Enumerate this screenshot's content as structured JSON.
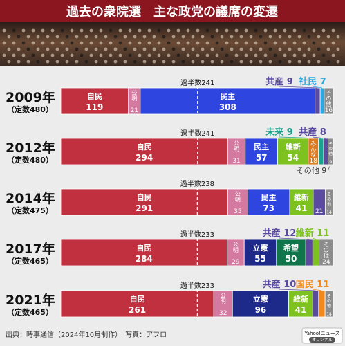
{
  "header": {
    "title": "過去の衆院選　主な政党の議席の変遷"
  },
  "photo": {
    "description": ""
  },
  "footer": {
    "source": "出典：時事通信（2024年10月制作）　写真：アフロ",
    "logo_line1": "Yahoo!ニュース",
    "logo_line2": "オリジナル"
  },
  "colors": {
    "自民": "#c1303e",
    "公明": "#d47aa0",
    "民主": "#2f45e0",
    "立憲": "#1e2a8a",
    "維新": "#7dc21e",
    "希望": "#10754a",
    "共産": "#5a4aa0",
    "社民": "#2aa9e0",
    "未来": "#1ca28c",
    "みんな": "#e07a1e",
    "国民": "#f08a1e",
    "その他": "#8c8c8c",
    "header_bg": "#8b1620"
  },
  "chart_data": {
    "type": "bar",
    "title": "過去の衆院選　主な政党の議席の変遷",
    "orientation": "horizontal-stacked",
    "rows": [
      {
        "year": "2009年",
        "teisu": "（定数480）",
        "total": 480,
        "majority": 241,
        "majority_label": "過半数241",
        "segments": [
          {
            "party": "自民",
            "label": "自民",
            "value": 119,
            "value_label": "119"
          },
          {
            "party": "公明",
            "label": "公明",
            "value": 21,
            "value_label": "21"
          },
          {
            "party": "民主",
            "label": "民主",
            "value": 308,
            "value_label": "308"
          },
          {
            "party": "共産",
            "label": "共産",
            "value": 9,
            "value_label": "9"
          },
          {
            "party": "社民",
            "label": "社民",
            "value": 7,
            "value_label": "7"
          },
          {
            "party": "その他",
            "label": "その他",
            "value": 16,
            "value_label": "16"
          }
        ],
        "callouts": [
          {
            "party": "共産",
            "text": "共産 9"
          },
          {
            "party": "社民",
            "text": "社民 7"
          }
        ]
      },
      {
        "year": "2012年",
        "teisu": "（定数480）",
        "total": 480,
        "majority": 241,
        "majority_label": "過半数241",
        "segments": [
          {
            "party": "自民",
            "label": "自民",
            "value": 294,
            "value_label": "294"
          },
          {
            "party": "公明",
            "label": "公明",
            "value": 31,
            "value_label": "31"
          },
          {
            "party": "民主",
            "label": "民主",
            "value": 57,
            "value_label": "57"
          },
          {
            "party": "維新",
            "label": "維新",
            "value": 54,
            "value_label": "54"
          },
          {
            "party": "みんな",
            "label": "みんな",
            "value": 18,
            "value_label": "18"
          },
          {
            "party": "未来",
            "label": "未来",
            "value": 9,
            "value_label": "9"
          },
          {
            "party": "共産",
            "label": "共産",
            "value": 8,
            "value_label": "8"
          },
          {
            "party": "その他",
            "label": "その他",
            "value": 9,
            "value_label": "9"
          }
        ],
        "callouts": [
          {
            "party": "未来",
            "text": "未来 9"
          },
          {
            "party": "共産",
            "text": "共産 8"
          }
        ],
        "bottom_note": "その他 9"
      },
      {
        "year": "2014年",
        "teisu": "（定数475）",
        "total": 475,
        "majority": 238,
        "majority_label": "過半数238",
        "segments": [
          {
            "party": "自民",
            "label": "自民",
            "value": 291,
            "value_label": "291"
          },
          {
            "party": "公明",
            "label": "公明",
            "value": 35,
            "value_label": "35"
          },
          {
            "party": "民主",
            "label": "民主",
            "value": 73,
            "value_label": "73"
          },
          {
            "party": "維新",
            "label": "維新",
            "value": 41,
            "value_label": "41"
          },
          {
            "party": "共産",
            "label": "共産",
            "value": 21,
            "value_label": "21"
          },
          {
            "party": "その他",
            "label": "その他",
            "value": 14,
            "value_label": "14"
          }
        ],
        "callouts": []
      },
      {
        "year": "2017年",
        "teisu": "（定数465）",
        "total": 465,
        "majority": 233,
        "majority_label": "過半数233",
        "segments": [
          {
            "party": "自民",
            "label": "自民",
            "value": 284,
            "value_label": "284"
          },
          {
            "party": "公明",
            "label": "公明",
            "value": 29,
            "value_label": "29"
          },
          {
            "party": "立憲",
            "label": "立憲",
            "value": 55,
            "value_label": "55"
          },
          {
            "party": "希望",
            "label": "希望",
            "value": 50,
            "value_label": "50"
          },
          {
            "party": "共産",
            "label": "共産",
            "value": 12,
            "value_label": "12"
          },
          {
            "party": "維新",
            "label": "維新",
            "value": 11,
            "value_label": "11"
          },
          {
            "party": "その他",
            "label": "その他",
            "value": 24,
            "value_label": "24"
          }
        ],
        "callouts": [
          {
            "party": "共産",
            "text": "共産 12"
          },
          {
            "party": "維新",
            "text": "維新 11"
          }
        ]
      },
      {
        "year": "2021年",
        "teisu": "（定数465）",
        "total": 465,
        "majority": 233,
        "majority_label": "過半数233",
        "segments": [
          {
            "party": "自民",
            "label": "自民",
            "value": 261,
            "value_label": "261"
          },
          {
            "party": "公明",
            "label": "公明",
            "value": 32,
            "value_label": "32"
          },
          {
            "party": "立憲",
            "label": "立憲",
            "value": 96,
            "value_label": "96"
          },
          {
            "party": "維新",
            "label": "維新",
            "value": 41,
            "value_label": "41"
          },
          {
            "party": "共産",
            "label": "共産",
            "value": 10,
            "value_label": "10"
          },
          {
            "party": "国民",
            "label": "国民",
            "value": 11,
            "value_label": "11"
          },
          {
            "party": "その他",
            "label": "その他",
            "value": 14,
            "value_label": "14"
          }
        ],
        "callouts": [
          {
            "party": "共産",
            "text": "共産 10"
          },
          {
            "party": "国民",
            "text": "国民 11"
          }
        ]
      }
    ]
  }
}
